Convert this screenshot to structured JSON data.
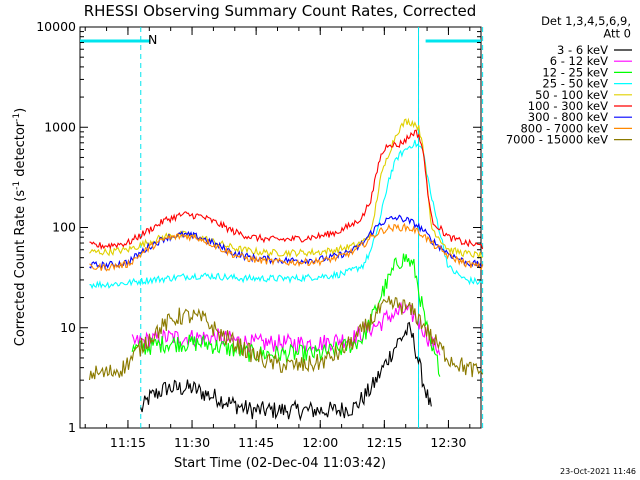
{
  "chart_data": {
    "type": "line",
    "title": "RHESSI Observing Summary Count Rates, Corrected",
    "xlabel": "Start Time (02-Dec-04 11:03:42)",
    "ylabel": "Corrected Count Rate (s⁻¹ detector⁻¹)",
    "y_scale": "log",
    "ylim": [
      1,
      10000
    ],
    "xlim_minutes": [
      11.063,
      12.627
    ],
    "x_ticks": [
      "11:15",
      "11:30",
      "11:45",
      "12:00",
      "12:15",
      "12:30"
    ],
    "y_ticks": [
      "1",
      "10",
      "100",
      "1000",
      "10000"
    ],
    "legend_header": [
      "Det 1,3,4,5,6,9,",
      "Att 0"
    ],
    "legend_position": "right",
    "timestamp": "23-Oct-2021 11:46",
    "annotation_N": "N",
    "night_segments": [
      [
        11.063,
        11.337
      ],
      [
        12.411,
        12.627
      ]
    ],
    "dashed_lines_time": [
      "11:18",
      "12:23",
      "12:38"
    ],
    "solid_line_time": "12:23",
    "series": [
      {
        "name": "3 - 6 keV",
        "color": "#000000",
        "x": [
          "11:18",
          "11:20",
          "11:24",
          "11:26",
          "11:30",
          "11:33",
          "11:36",
          "11:40",
          "11:44",
          "11:48",
          "11:52",
          "11:56",
          "12:00",
          "12:04",
          "12:08",
          "12:10",
          "12:12",
          "12:14",
          "12:16",
          "12:18",
          "12:20",
          "12:21",
          "12:22",
          "12:24",
          "12:26"
        ],
        "y": [
          1.5,
          2,
          2.5,
          2.5,
          2.5,
          2.2,
          2,
          1.7,
          1.5,
          1.5,
          1.5,
          1.5,
          1.5,
          1.5,
          1.6,
          2,
          2.5,
          3.5,
          5,
          7,
          9,
          9.5,
          7,
          3,
          1.5
        ]
      },
      {
        "name": "6 - 12 keV",
        "color": "#ff00ff",
        "x": [
          "11:16",
          "11:20",
          "11:24",
          "11:27",
          "11:30",
          "11:33",
          "11:36",
          "11:40",
          "11:44",
          "11:48",
          "11:52",
          "11:56",
          "12:00",
          "12:04",
          "12:08",
          "12:10",
          "12:12",
          "12:14",
          "12:16",
          "12:18",
          "12:20",
          "12:22",
          "12:24",
          "12:26",
          "12:28"
        ],
        "y": [
          7,
          7.5,
          8,
          8,
          8,
          8,
          8,
          7.5,
          7,
          7,
          7,
          7,
          7,
          7.5,
          8,
          9,
          10,
          11,
          13,
          14,
          15,
          13,
          10,
          7,
          6
        ]
      },
      {
        "name": "12 - 25 keV",
        "color": "#00ff00",
        "x": [
          "11:16",
          "11:20",
          "11:24",
          "11:26",
          "11:30",
          "11:33",
          "11:36",
          "11:40",
          "11:44",
          "11:48",
          "11:52",
          "11:56",
          "12:00",
          "12:04",
          "12:08",
          "12:10",
          "12:12",
          "12:14",
          "12:16",
          "12:18",
          "12:20",
          "12:22",
          "12:24",
          "12:26",
          "12:28"
        ],
        "y": [
          6,
          6.5,
          7,
          7,
          7,
          7,
          6.5,
          6,
          5.5,
          5.5,
          5.5,
          5.5,
          5.5,
          6,
          7,
          8,
          12,
          20,
          30,
          45,
          50,
          40,
          15,
          6,
          4
        ]
      },
      {
        "name": "25 - 50 keV",
        "color": "#00ffff",
        "x": [
          "11:06",
          "11:10",
          "11:15",
          "11:20",
          "11:24",
          "11:30",
          "11:34",
          "11:38",
          "11:42",
          "11:46",
          "11:50",
          "11:54",
          "11:58",
          "12:02",
          "12:06",
          "12:08",
          "12:10",
          "12:12",
          "12:14",
          "12:16",
          "12:18",
          "12:20",
          "12:22",
          "12:24",
          "12:26",
          "12:30",
          "12:34",
          "12:38"
        ],
        "y": [
          27,
          27,
          28,
          30,
          31,
          33,
          33,
          32,
          31,
          31,
          31,
          31,
          32,
          33,
          35,
          38,
          42,
          60,
          120,
          300,
          500,
          600,
          700,
          600,
          200,
          40,
          30,
          28
        ]
      },
      {
        "name": "50 - 100 keV",
        "color": "#e0d000",
        "x": [
          "11:06",
          "11:10",
          "11:15",
          "11:20",
          "11:24",
          "11:28",
          "11:32",
          "11:36",
          "11:40",
          "11:44",
          "11:48",
          "11:52",
          "11:56",
          "12:00",
          "12:04",
          "12:08",
          "12:10",
          "12:12",
          "12:14",
          "12:16",
          "12:18",
          "12:20",
          "12:22",
          "12:23",
          "12:24",
          "12:26",
          "12:30",
          "12:34",
          "12:38"
        ],
        "y": [
          57,
          57,
          60,
          72,
          82,
          85,
          80,
          70,
          62,
          58,
          56,
          56,
          56,
          57,
          60,
          66,
          72,
          90,
          300,
          550,
          900,
          1150,
          1100,
          1000,
          700,
          100,
          60,
          55,
          52
        ]
      },
      {
        "name": "100 - 300 keV",
        "color": "#ff0000",
        "x": [
          "11:06",
          "11:10",
          "11:15",
          "11:20",
          "11:24",
          "11:28",
          "11:32",
          "11:36",
          "11:40",
          "11:44",
          "11:48",
          "11:52",
          "11:56",
          "12:00",
          "12:04",
          "12:08",
          "12:10",
          "12:12",
          "12:14",
          "12:16",
          "12:18",
          "12:20",
          "12:22",
          "12:23",
          "12:24",
          "12:26",
          "12:30",
          "12:34",
          "12:38"
        ],
        "y": [
          66,
          66,
          70,
          95,
          120,
          135,
          130,
          110,
          90,
          80,
          76,
          76,
          78,
          82,
          90,
          110,
          130,
          200,
          500,
          700,
          650,
          750,
          900,
          850,
          600,
          120,
          80,
          70,
          65
        ]
      },
      {
        "name": "300 - 800 keV",
        "color": "#0000ff",
        "x": [
          "11:06",
          "11:10",
          "11:15",
          "11:20",
          "11:24",
          "11:28",
          "11:32",
          "11:36",
          "11:40",
          "11:44",
          "11:48",
          "11:52",
          "11:56",
          "12:00",
          "12:04",
          "12:08",
          "12:10",
          "12:12",
          "12:14",
          "12:16",
          "12:18",
          "12:20",
          "12:22",
          "12:24",
          "12:26",
          "12:30",
          "12:34",
          "12:38"
        ],
        "y": [
          42,
          42,
          45,
          65,
          80,
          85,
          80,
          66,
          55,
          50,
          48,
          47,
          47,
          48,
          52,
          60,
          70,
          90,
          110,
          120,
          125,
          120,
          110,
          95,
          75,
          55,
          45,
          42
        ]
      },
      {
        "name": "800 - 7000 keV",
        "color": "#ff8800",
        "x": [
          "11:06",
          "11:10",
          "11:15",
          "11:20",
          "11:24",
          "11:28",
          "11:32",
          "11:36",
          "11:40",
          "11:44",
          "11:48",
          "11:52",
          "11:56",
          "12:00",
          "12:04",
          "12:08",
          "12:10",
          "12:12",
          "12:14",
          "12:16",
          "12:18",
          "12:20",
          "12:22",
          "12:24",
          "12:26",
          "12:30",
          "12:34",
          "12:38"
        ],
        "y": [
          40,
          40,
          43,
          63,
          78,
          83,
          78,
          64,
          53,
          48,
          46,
          45,
          45,
          46,
          50,
          58,
          67,
          80,
          92,
          98,
          100,
          100,
          95,
          85,
          70,
          52,
          44,
          40
        ]
      },
      {
        "name": "7000 - 15000 keV",
        "color": "#8b7a00",
        "x": [
          "11:06",
          "11:10",
          "11:14",
          "11:16",
          "11:20",
          "11:24",
          "11:27",
          "11:30",
          "11:33",
          "11:36",
          "11:40",
          "11:44",
          "11:48",
          "11:52",
          "11:56",
          "12:00",
          "12:04",
          "12:08",
          "12:12",
          "12:14",
          "12:16",
          "12:18",
          "12:20",
          "12:22",
          "12:24",
          "12:26",
          "12:30",
          "12:34",
          "12:38"
        ],
        "y": [
          3.5,
          3.5,
          4,
          5,
          8,
          11,
          13,
          13,
          12,
          9,
          7,
          5.5,
          4.5,
          4.2,
          4.2,
          4.5,
          5.5,
          7.5,
          12,
          15,
          17,
          17,
          16,
          14,
          11,
          8,
          5,
          4,
          3.5
        ]
      }
    ]
  }
}
